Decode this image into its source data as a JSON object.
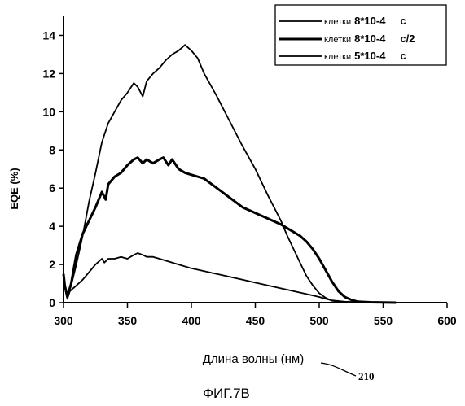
{
  "chart_data": {
    "type": "line",
    "title": "",
    "xlabel": "Длина волны (нм)",
    "ylabel": "EQE (%)",
    "xlim": [
      300,
      600
    ],
    "ylim": [
      0,
      15
    ],
    "x_ticks": [
      300,
      350,
      400,
      450,
      500,
      550,
      600
    ],
    "y_ticks": [
      0,
      2,
      4,
      6,
      8,
      10,
      12,
      14
    ],
    "grid": false,
    "legend_position": "top-right",
    "series": [
      {
        "legend_prefix": "клетки",
        "name": "8*10-4",
        "unit": "c",
        "points": [
          [
            300,
            1.5
          ],
          [
            301,
            0.8
          ],
          [
            303,
            0.2
          ],
          [
            305,
            0.6
          ],
          [
            310,
            0.9
          ],
          [
            315,
            1.2
          ],
          [
            320,
            1.6
          ],
          [
            325,
            2.0
          ],
          [
            330,
            2.3
          ],
          [
            332,
            2.1
          ],
          [
            335,
            2.3
          ],
          [
            340,
            2.3
          ],
          [
            345,
            2.4
          ],
          [
            350,
            2.3
          ],
          [
            355,
            2.5
          ],
          [
            358,
            2.6
          ],
          [
            362,
            2.5
          ],
          [
            365,
            2.4
          ],
          [
            370,
            2.4
          ],
          [
            375,
            2.3
          ],
          [
            380,
            2.2
          ],
          [
            390,
            2.0
          ],
          [
            400,
            1.8
          ],
          [
            410,
            1.65
          ],
          [
            420,
            1.5
          ],
          [
            430,
            1.35
          ],
          [
            440,
            1.2
          ],
          [
            450,
            1.05
          ],
          [
            460,
            0.9
          ],
          [
            470,
            0.75
          ],
          [
            480,
            0.6
          ],
          [
            490,
            0.45
          ],
          [
            500,
            0.3
          ],
          [
            505,
            0.2
          ],
          [
            510,
            0.12
          ],
          [
            520,
            0.05
          ],
          [
            530,
            0.03
          ],
          [
            540,
            0.02
          ],
          [
            550,
            0.01
          ],
          [
            560,
            0.0
          ]
        ]
      },
      {
        "legend_prefix": "клетки",
        "name": "8*10-4",
        "unit": "c/2",
        "points": [
          [
            300,
            1.5
          ],
          [
            301,
            0.9
          ],
          [
            303,
            0.3
          ],
          [
            306,
            1.0
          ],
          [
            310,
            2.5
          ],
          [
            315,
            3.6
          ],
          [
            320,
            4.3
          ],
          [
            325,
            5.0
          ],
          [
            330,
            5.8
          ],
          [
            333,
            5.4
          ],
          [
            335,
            6.2
          ],
          [
            340,
            6.6
          ],
          [
            345,
            6.8
          ],
          [
            350,
            7.2
          ],
          [
            355,
            7.5
          ],
          [
            358,
            7.6
          ],
          [
            362,
            7.3
          ],
          [
            365,
            7.5
          ],
          [
            370,
            7.3
          ],
          [
            375,
            7.5
          ],
          [
            378,
            7.6
          ],
          [
            382,
            7.2
          ],
          [
            385,
            7.5
          ],
          [
            390,
            7.0
          ],
          [
            395,
            6.8
          ],
          [
            400,
            6.7
          ],
          [
            410,
            6.5
          ],
          [
            420,
            6.0
          ],
          [
            430,
            5.5
          ],
          [
            440,
            5.0
          ],
          [
            450,
            4.7
          ],
          [
            460,
            4.4
          ],
          [
            470,
            4.1
          ],
          [
            480,
            3.7
          ],
          [
            485,
            3.5
          ],
          [
            490,
            3.2
          ],
          [
            495,
            2.8
          ],
          [
            500,
            2.3
          ],
          [
            505,
            1.7
          ],
          [
            510,
            1.1
          ],
          [
            515,
            0.6
          ],
          [
            520,
            0.3
          ],
          [
            525,
            0.15
          ],
          [
            530,
            0.05
          ],
          [
            540,
            0.02
          ],
          [
            550,
            0.01
          ],
          [
            560,
            0.0
          ]
        ]
      },
      {
        "legend_prefix": "клетки",
        "name": "5*10-4",
        "unit": "c",
        "points": [
          [
            300,
            1.5
          ],
          [
            301,
            0.8
          ],
          [
            303,
            0.5
          ],
          [
            306,
            0.9
          ],
          [
            310,
            2.0
          ],
          [
            315,
            3.5
          ],
          [
            320,
            5.3
          ],
          [
            325,
            6.8
          ],
          [
            330,
            8.4
          ],
          [
            335,
            9.4
          ],
          [
            340,
            10.0
          ],
          [
            345,
            10.6
          ],
          [
            350,
            11.0
          ],
          [
            355,
            11.5
          ],
          [
            358,
            11.3
          ],
          [
            362,
            10.8
          ],
          [
            365,
            11.6
          ],
          [
            370,
            12.0
          ],
          [
            375,
            12.3
          ],
          [
            380,
            12.7
          ],
          [
            385,
            13.0
          ],
          [
            390,
            13.2
          ],
          [
            395,
            13.5
          ],
          [
            400,
            13.2
          ],
          [
            405,
            12.8
          ],
          [
            410,
            12.0
          ],
          [
            420,
            10.8
          ],
          [
            430,
            9.5
          ],
          [
            440,
            8.2
          ],
          [
            450,
            7.0
          ],
          [
            460,
            5.6
          ],
          [
            470,
            4.3
          ],
          [
            475,
            3.5
          ],
          [
            480,
            2.8
          ],
          [
            485,
            2.1
          ],
          [
            490,
            1.4
          ],
          [
            495,
            0.9
          ],
          [
            500,
            0.5
          ],
          [
            505,
            0.25
          ],
          [
            510,
            0.1
          ],
          [
            520,
            0.03
          ],
          [
            530,
            0.01
          ],
          [
            540,
            0.0
          ]
        ]
      }
    ]
  },
  "figure": {
    "caption": "ФИГ.7B",
    "ref_number": "210"
  }
}
